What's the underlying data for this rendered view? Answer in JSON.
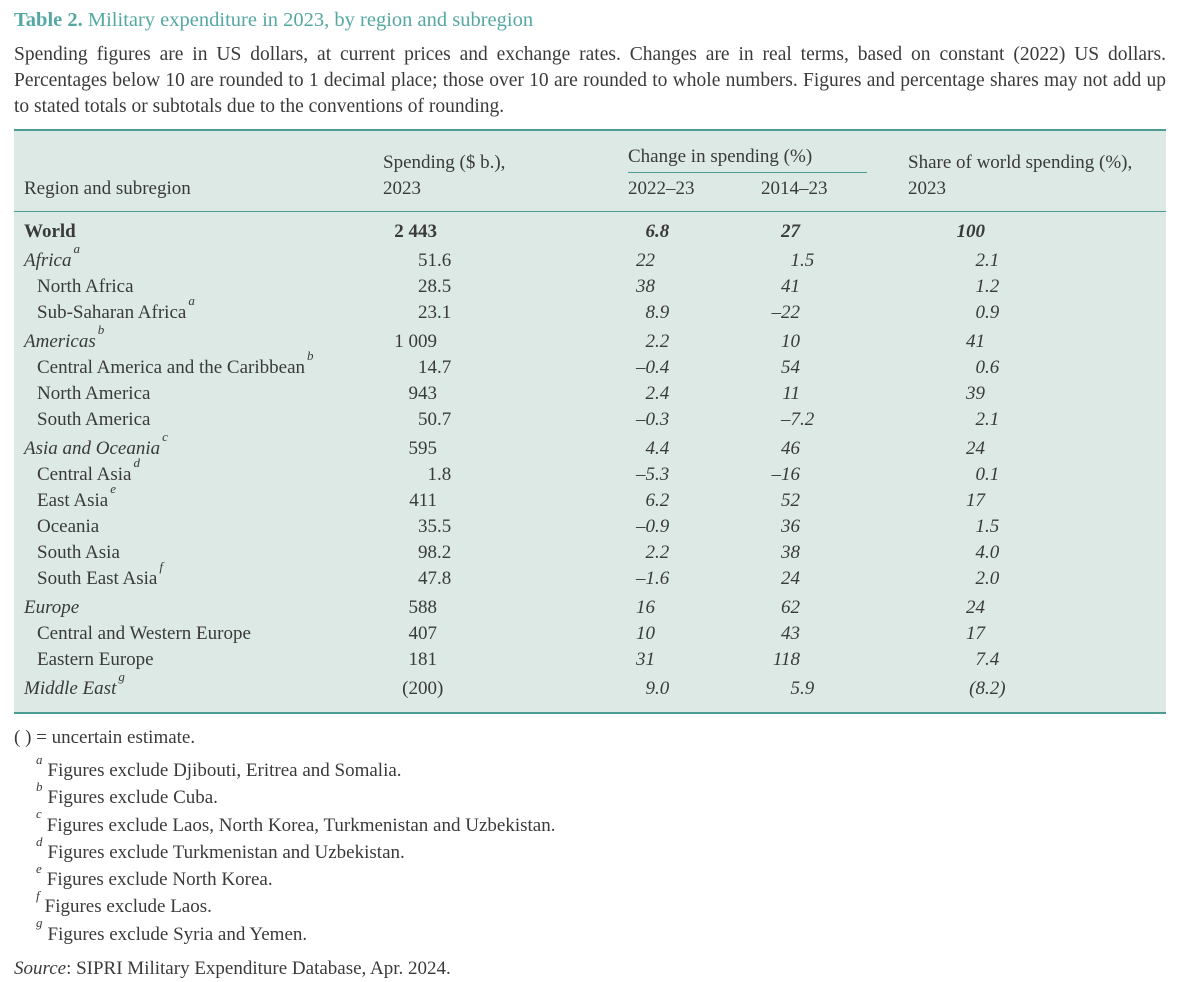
{
  "colors": {
    "accent": "#55a8a2",
    "table_background": "#dce9e4",
    "rule": "#4c9b94",
    "text": "#3a3a3a"
  },
  "title": {
    "prefix": "Table 2.",
    "text": "Military expenditure in 2023, by region and subregion"
  },
  "description": "Spending figures are in US dollars, at current prices and exchange rates. Changes are in real terms, based on constant (2022) US dollars. Percentages below 10 are rounded to 1 decimal place; those over 10 are rounded to whole numbers. Figures and percentage shares may not add up to stated totals or subtotals due to the conventions of rounding.",
  "table": {
    "header": {
      "col_region": "Region and subregion",
      "col_spending_line1": "Spending ($ b.),",
      "col_spending_line2": "2023",
      "change_group": "Change in spending (%)",
      "col_2022_23": "2022–23",
      "col_2014_23": "2014–23",
      "col_share_line1": "Share of world spending (%),",
      "col_share_line2": "2023"
    },
    "rows": [
      {
        "label": "World",
        "sup": "",
        "style": "total",
        "values": [
          "2 443",
          "6.8",
          "27",
          "100"
        ]
      },
      {
        "label": "Africa",
        "sup": "a",
        "style": "region",
        "values": [
          "51.6",
          "22",
          "1.5",
          "2.1"
        ]
      },
      {
        "label": "North Africa",
        "sup": "",
        "style": "sub",
        "values": [
          "28.5",
          "38",
          "41",
          "1.2"
        ]
      },
      {
        "label": "Sub-Saharan Africa",
        "sup": "a",
        "style": "sub",
        "values": [
          "23.1",
          "8.9",
          "–22",
          "0.9"
        ]
      },
      {
        "label": "Americas",
        "sup": "b",
        "style": "region",
        "values": [
          "1 009",
          "2.2",
          "10",
          "41"
        ]
      },
      {
        "label": "Central America and the Caribbean",
        "sup": "b",
        "style": "sub",
        "values": [
          "14.7",
          "–0.4",
          "54",
          "0.6"
        ]
      },
      {
        "label": "North America",
        "sup": "",
        "style": "sub",
        "values": [
          "943",
          "2.4",
          "11",
          "39"
        ]
      },
      {
        "label": "South America",
        "sup": "",
        "style": "sub",
        "values": [
          "50.7",
          "–0.3",
          "–7.2",
          "2.1"
        ]
      },
      {
        "label": "Asia and Oceania",
        "sup": "c",
        "style": "region",
        "values": [
          "595",
          "4.4",
          "46",
          "24"
        ]
      },
      {
        "label": "Central Asia",
        "sup": "d",
        "style": "sub",
        "values": [
          "1.8",
          "–5.3",
          "–16",
          "0.1"
        ]
      },
      {
        "label": "East Asia",
        "sup": "e",
        "style": "sub",
        "values": [
          "411",
          "6.2",
          "52",
          "17"
        ]
      },
      {
        "label": "Oceania",
        "sup": "",
        "style": "sub",
        "values": [
          "35.5",
          "–0.9",
          "36",
          "1.5"
        ]
      },
      {
        "label": "South Asia",
        "sup": "",
        "style": "sub",
        "values": [
          "98.2",
          "2.2",
          "38",
          "4.0"
        ]
      },
      {
        "label": "South East Asia",
        "sup": "f",
        "style": "sub",
        "values": [
          "47.8",
          "–1.6",
          "24",
          "2.0"
        ]
      },
      {
        "label": "Europe",
        "sup": "",
        "style": "region",
        "values": [
          "588",
          "16",
          "62",
          "24"
        ]
      },
      {
        "label": "Central and Western Europe",
        "sup": "",
        "style": "sub",
        "values": [
          "407",
          "10",
          "43",
          "17"
        ]
      },
      {
        "label": "Eastern Europe",
        "sup": "",
        "style": "sub",
        "values": [
          "181",
          "31",
          "118",
          "7.4"
        ]
      },
      {
        "label": "Middle East",
        "sup": "g",
        "style": "region",
        "values": [
          "(200)",
          "9.0",
          "5.9",
          "(8.2)"
        ]
      }
    ]
  },
  "footnotes": {
    "uncertain": "( ) = uncertain estimate.",
    "items": [
      {
        "sup": "a",
        "text": "Figures exclude Djibouti, Eritrea and Somalia."
      },
      {
        "sup": "b",
        "text": "Figures exclude Cuba."
      },
      {
        "sup": "c",
        "text": "Figures exclude Laos, North Korea, Turkmenistan and Uzbekistan."
      },
      {
        "sup": "d",
        "text": "Figures exclude Turkmenistan and Uzbekistan."
      },
      {
        "sup": "e",
        "text": "Figures exclude North Korea."
      },
      {
        "sup": "f",
        "text": "Figures exclude Laos."
      },
      {
        "sup": "g",
        "text": "Figures exclude Syria and Yemen."
      }
    ]
  },
  "source": {
    "label": "Source",
    "text": ": SIPRI Military Expenditure Database, Apr. 2024."
  }
}
